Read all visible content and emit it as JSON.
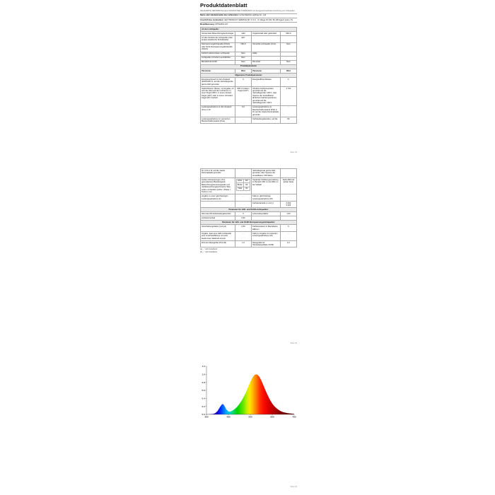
{
  "document": {
    "title": "Produktdatenblatt",
    "regulation": "DELEGIERTE VERORDNUNG (EU) 2019/2015 DER KOMMISSION zur Energieverbrauchskennzeichnung von Lichtquellen",
    "supplier_label": "Name oder Handelsmarke des Lieferanten:",
    "supplier_value": "Linhai Wanlize Lighting Co., Ltd.",
    "address_label": "Anschrift des Lieferanten:",
    "address_value": "GET PRODUCT SERVICE SP. Z O.O., Ul. Długa 33 102, 95-100 Zgierz polen, PL",
    "model_label": "Modellkennung:",
    "model_value": "WTW2501-107"
  },
  "page1": {
    "rows": [
      {
        "type": "section",
        "align": "left",
        "label": "Art der Lichtquelle:"
      },
      {
        "type": "row",
        "c": [
          "Verwendete Beleuchtungstechnologie:",
          "LED",
          "Ungebündelt oder gebündelt:",
          "NDLS"
        ]
      },
      {
        "type": "row",
        "c": [
          "Art des Sockels der Lichtquelle (oder andere elektrische Schnittstelle)",
          "E27",
          "",
          ""
        ]
      },
      {
        "type": "row",
        "c": [
          "Netzspannungslichtquelle (NSLS) oder Nicht-Netzspannungslichtquelle (NNLS):",
          "NSLS",
          "Vernetzte Lichtquelle (CLS):",
          "Nein"
        ]
      },
      {
        "type": "row",
        "c": [
          "Farblich abstimmbare Lichtquelle:",
          "Nein",
          "Hülle:",
          "-"
        ]
      },
      {
        "type": "row",
        "c": [
          "Lichtquelle mit hoher Leuchtdichte:",
          "Nein",
          "",
          ""
        ]
      },
      {
        "type": "row",
        "c": [
          "Blendschutzschild:",
          "Nein",
          "Dimmbar:",
          "Nein"
        ]
      },
      {
        "type": "section",
        "label": "Produktparameter"
      },
      {
        "type": "cols",
        "c": [
          "Parameter",
          "Wert",
          "Parameter",
          "Wert"
        ]
      },
      {
        "type": "section",
        "label": "Allgemeine Produktparameter:"
      },
      {
        "type": "row",
        "c": [
          "Energieverbrauch im Ein-Zustand (kWh/1000 h), auf die nächstliegende ganze Zahl gerundet",
          "6",
          "Energieeffizienzklasse",
          "F"
        ]
      },
      {
        "type": "row",
        "c": [
          "Nutzlichtstrom (Φuse), mit Angabe, ob sich der Wert auf den Lichtstrom in einer Kugel (360°), in einem breiten Kegel (120°) oder in einem schmalen Kegel (90°) bezieht",
          "806 in breitem Kegel (120°)",
          "Ähnliche Farbtemperatur, gerundet auf die nächstliegenden 100 K, oder Spanne der einstellbaren ähnlichen Farbtemperaturen, gerundet auf die nächstliegenden 100 K",
          "2 700"
        ]
      },
      {
        "type": "row",
        "c": [
          "Leistungsaufnahme im Ein-Zustand (Pon) in W",
          "6,0",
          "Leistungsaufnahme im Bereitschaftszustand (Psb) in W, auf die zweite Dezimalstelle gerundet",
          "-"
        ]
      },
      {
        "type": "row",
        "c": [
          "Leistungsaufnahme im vernetzten Bereitschaftszustand (Pnet)",
          "-",
          "Farbwiedergabeindex, auf die",
          "80"
        ]
      }
    ]
  },
  "page2": {
    "rows": [
      {
        "type": "row",
        "c": [
          "für CLS in W, auf die zweite Dezimalstelle gerundet",
          "",
          "nächstliegende ganze Zahl gerundet, oder Spanne der einstellbaren CRI-Werte",
          ""
        ]
      },
      {
        "type": "row",
        "c": [
          "Äußere Abmessungen ohne gesonderte(s) Betriebsgerät, Beleuchtungssteuerungsteile und nichtbeleuchtungstechnische Teile, sofern vorhanden (Höhe × Breite × Tiefe) in mm",
          "",
          "Spektrale Strahlungsverteilung im Bereich 250 nm bis 800 nm bei Volllast",
          "Siehe Bild auf letzter Seite"
        ],
        "sub": [
          [
            "Höhe",
            "110"
          ],
          [
            "Breite",
            "60"
          ],
          [
            "Tiefe",
            "60"
          ]
        ]
      },
      {
        "type": "row",
        "c": [
          "Angabe zu einer gleichwertigen Leistungsaufnahme (b)",
          "-",
          "Falls ja, gleichwertige Leistungsaufnahme (W)",
          "-"
        ]
      },
      {
        "type": "row",
        "c": [
          "",
          "",
          "Farbwertanteile (x und y)",
          "0,490\n0,425"
        ]
      },
      {
        "type": "section",
        "label": "Parameter für LED- und OLED-Lichtquellen:"
      },
      {
        "type": "row",
        "c": [
          "Wert des R9-Farbwiedergabeindex",
          "0",
          "Lebensdauerfaktor",
          "1,00"
        ]
      },
      {
        "type": "row",
        "c": [
          "Lichtstromerhalt",
          "0,90",
          "",
          ""
        ]
      },
      {
        "type": "section",
        "label": "Parameter für LED- und OLED-Netzspannungslichtquellen:"
      },
      {
        "type": "row",
        "c": [
          "Verschiebungsfaktor (cos φ1)",
          "0,50",
          "Farbkonsistenz in MacAdams-Ellipsen",
          "6"
        ]
      },
      {
        "type": "row",
        "c": [
          "Angabe, dass eine LED-Lichtquelle eine Leuchtstofflampe mit einer bestimmten Wattzahl ersetzt",
          "-",
          "Falls ja, Angabe zur ersetzten Leistungsaufnahme (W)",
          "-"
        ]
      },
      {
        "type": "row",
        "c": [
          "Flimmer-Messgröße (Pst LM)",
          "1,0",
          "Messgröße für Stroboskopeffekte (SVM)",
          "0,4"
        ]
      }
    ],
    "footnotes": [
      "(a) „-“: nicht zutreffend;",
      "(b) „-“: nicht zutreffend."
    ]
  },
  "page_markers": [
    "Seite 1/3",
    "Seite 2/3",
    "Seite 3/3"
  ],
  "chart_data": {
    "type": "area",
    "title": "",
    "xlabel": "",
    "ylabel": "",
    "xlim": [
      380,
      780
    ],
    "ylim": [
      0,
      1.2
    ],
    "x_ticks": [
      380,
      480,
      580,
      680,
      780
    ],
    "y_ticks": [
      0.0,
      0.2,
      0.4,
      0.6,
      0.8,
      1.0,
      1.2
    ],
    "grid": false,
    "legend": "none",
    "axis_color": "#333333",
    "series": [
      {
        "name": "Spektrale Strahlungsverteilung 250–800 nm",
        "x": [
          380,
          395,
          410,
          420,
          430,
          440,
          450,
          455,
          460,
          470,
          480,
          490,
          500,
          510,
          520,
          530,
          540,
          550,
          560,
          570,
          580,
          590,
          600,
          610,
          620,
          630,
          640,
          650,
          660,
          670,
          680,
          690,
          700,
          715,
          730,
          750,
          780
        ],
        "y": [
          0.0,
          0.005,
          0.01,
          0.03,
          0.08,
          0.17,
          0.25,
          0.26,
          0.23,
          0.13,
          0.07,
          0.07,
          0.1,
          0.14,
          0.19,
          0.26,
          0.34,
          0.44,
          0.55,
          0.68,
          0.81,
          0.92,
          0.99,
          1.0,
          0.95,
          0.85,
          0.72,
          0.59,
          0.47,
          0.36,
          0.27,
          0.2,
          0.15,
          0.09,
          0.055,
          0.03,
          0.01
        ]
      }
    ],
    "gradient": [
      {
        "o": 0.0,
        "c": "#2a0070"
      },
      {
        "o": 0.125,
        "c": "#1500d8"
      },
      {
        "o": 0.163,
        "c": "#0032ff"
      },
      {
        "o": 0.188,
        "c": "#0064ff"
      },
      {
        "o": 0.225,
        "c": "#00a8ff"
      },
      {
        "o": 0.263,
        "c": "#00d4d2"
      },
      {
        "o": 0.3,
        "c": "#00dc78"
      },
      {
        "o": 0.35,
        "c": "#00d200"
      },
      {
        "o": 0.413,
        "c": "#5ae600"
      },
      {
        "o": 0.463,
        "c": "#c8f000"
      },
      {
        "o": 0.495,
        "c": "#ffe600"
      },
      {
        "o": 0.53,
        "c": "#ffb400"
      },
      {
        "o": 0.568,
        "c": "#ff7800"
      },
      {
        "o": 0.605,
        "c": "#ff3700"
      },
      {
        "o": 0.645,
        "c": "#ff0f00"
      },
      {
        "o": 0.7,
        "c": "#e00000"
      },
      {
        "o": 0.775,
        "c": "#b00000"
      },
      {
        "o": 0.85,
        "c": "#820000"
      },
      {
        "o": 1.0,
        "c": "#4b0000"
      }
    ]
  }
}
